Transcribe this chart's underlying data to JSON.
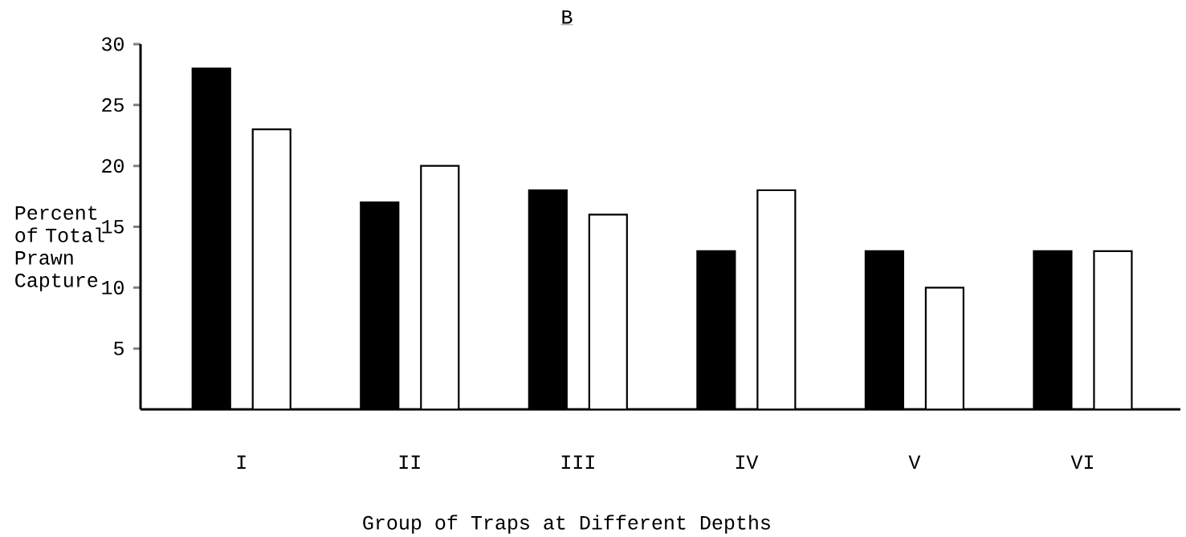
{
  "chart_data": {
    "type": "bar",
    "title": "B",
    "xlabel": "Group of Traps at Different Depths",
    "ylabel": "Percent of Total Prawn Capture",
    "categories": [
      "I",
      "II",
      "III",
      "IV",
      "V",
      "VI"
    ],
    "series": [
      {
        "color": "#000000",
        "values": [
          28,
          17,
          18,
          13,
          13,
          13
        ]
      },
      {
        "color": "#ffffff",
        "values": [
          23,
          20,
          16,
          18,
          10,
          13
        ]
      }
    ],
    "ylim": [
      0,
      30
    ],
    "yticks": [
      5,
      10,
      15,
      20,
      25,
      30
    ]
  }
}
